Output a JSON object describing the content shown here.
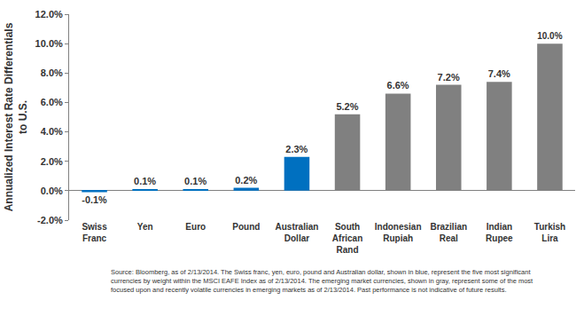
{
  "chart_data": {
    "type": "bar",
    "y_label": "Annualized Interest Rate Differentials to U.S.",
    "categories": [
      "Swiss Franc",
      "Yen",
      "Euro",
      "Pound",
      "Australian Dollar",
      "South African Rand",
      "Indonesian Rupiah",
      "Brazilian Real",
      "Indian Rupee",
      "Turkish Lira"
    ],
    "values": [
      -0.1,
      0.1,
      0.1,
      0.2,
      2.3,
      5.2,
      6.6,
      7.2,
      7.4,
      10.0
    ],
    "value_labels": [
      "-0.1%",
      "0.1%",
      "0.1%",
      "0.2%",
      "2.3%",
      "5.2%",
      "6.6%",
      "7.2%",
      "7.4%",
      "10.0%"
    ],
    "colors": [
      "#0070c0",
      "#0070c0",
      "#0070c0",
      "#0070c0",
      "#0070c0",
      "#808080",
      "#808080",
      "#808080",
      "#808080",
      "#808080"
    ],
    "data_labels": true,
    "grid": false,
    "ylim": [
      -2,
      12
    ],
    "yticks": [
      {
        "value": -2,
        "label": "-2.0%"
      },
      {
        "value": 0,
        "label": "0.0%"
      },
      {
        "value": 2,
        "label": "2.0%"
      },
      {
        "value": 4,
        "label": "4.0%"
      },
      {
        "value": 6,
        "label": "6.0%"
      },
      {
        "value": 8,
        "label": "8.0%"
      },
      {
        "value": 10,
        "label": "10.0%"
      },
      {
        "value": 12,
        "label": "12.0%"
      }
    ],
    "note": "Source: Bloomberg, as of 2/13/2014. The Swiss franc, yen, euro, pound and Australian dollar, shown in blue, represent the five most significant currencies by weight within the MSCI EAFE Index as of 2/13/2014. The emerging market currencies, shown in gray, represent some of the most focused upon and recently volatile currencies in emerging markets as of 2/13/2014. Past performance is not indicative of future results."
  }
}
